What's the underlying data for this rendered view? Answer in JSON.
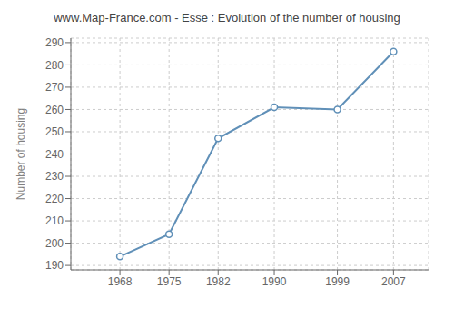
{
  "chart_data": {
    "type": "line",
    "title": "www.Map-France.com - Esse : Evolution of the number of housing",
    "ylabel": "Number of housing",
    "x": [
      1968,
      1975,
      1982,
      1990,
      1999,
      2007
    ],
    "values": [
      194,
      204,
      247,
      261,
      260,
      286
    ],
    "color": "#6090b8",
    "marker": "circle",
    "xlim": [
      1961,
      2012
    ],
    "xticks": [
      1968,
      1975,
      1982,
      1990,
      1999,
      2007
    ],
    "ylim": [
      188,
      292
    ],
    "yticks": [
      190,
      200,
      210,
      220,
      230,
      240,
      250,
      260,
      270,
      280,
      290
    ],
    "grid": true
  }
}
